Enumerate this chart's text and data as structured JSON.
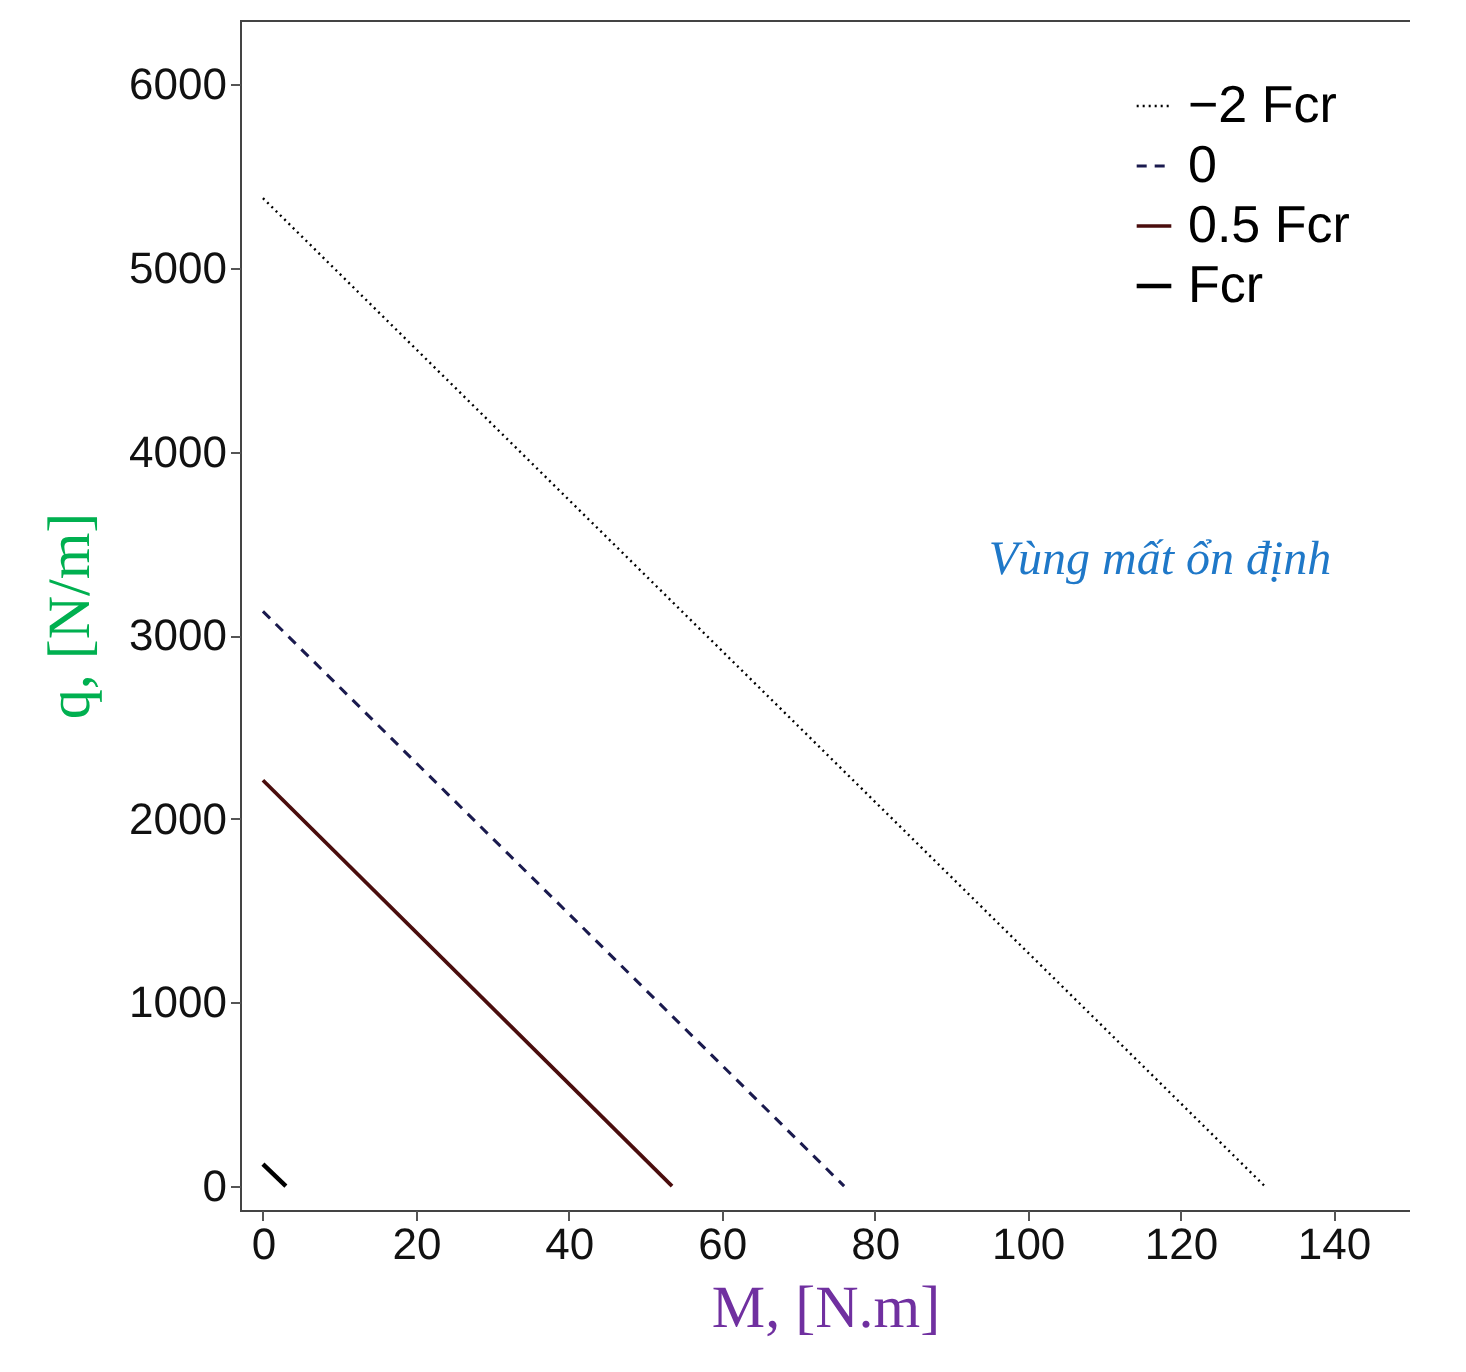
{
  "chart_data": {
    "type": "line",
    "xlabel": "M, [N.m]",
    "ylabel": "q, [N/m]",
    "xlim": [
      -3,
      150
    ],
    "ylim": [
      -130,
      6350
    ],
    "xticks": [
      0,
      20,
      40,
      60,
      80,
      100,
      120,
      140
    ],
    "yticks": [
      0,
      1000,
      2000,
      3000,
      4000,
      5000,
      6000
    ],
    "grid": false,
    "legend": "top right",
    "marker": "none",
    "annotations": [
      "Vùng mất ổn định"
    ],
    "series": [
      {
        "name": "−2 Fcr",
        "color": "#000000",
        "line_style": "dotted",
        "x": [
          0,
          131
        ],
        "values": [
          5380,
          0
        ]
      },
      {
        "name": "0",
        "color": "#1a1a4e",
        "line_style": "dashed",
        "x": [
          0,
          76
        ],
        "values": [
          3130,
          0
        ]
      },
      {
        "name": "0.5 Fcr",
        "color": "#4a0d0d",
        "line_style": "solid",
        "x": [
          0,
          53.5
        ],
        "values": [
          2210,
          0
        ]
      },
      {
        "name": "Fcr",
        "color": "#000000",
        "line_style": "solid",
        "x": [
          0,
          3
        ],
        "values": [
          120,
          0
        ]
      }
    ]
  }
}
